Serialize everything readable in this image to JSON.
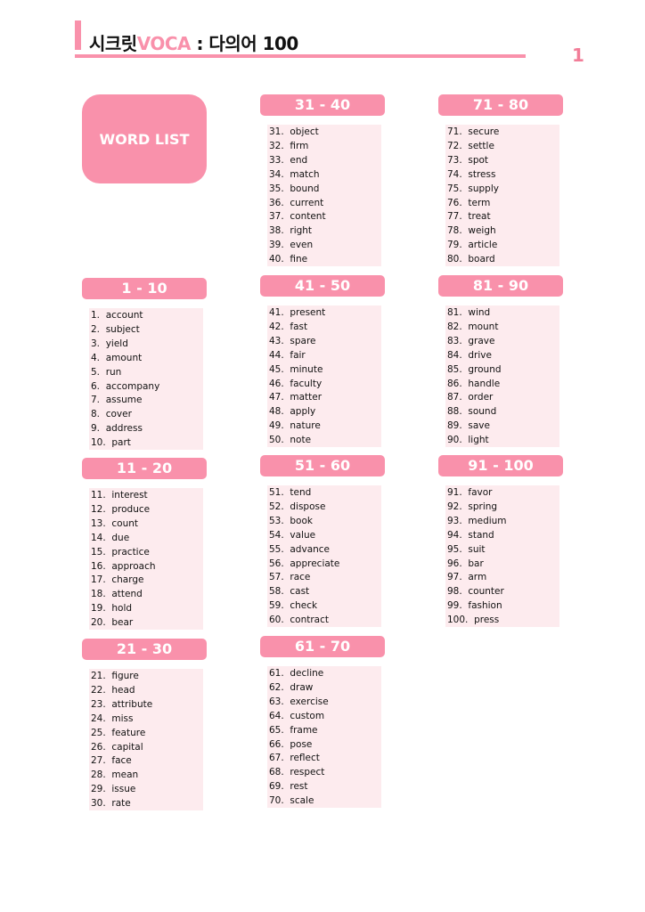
{
  "header": {
    "title_prefix": "시크릿",
    "title_brand": "VOCA",
    "title_suffix": " : 다의어 100",
    "page_number": "1"
  },
  "wordlist_label": "WORD LIST",
  "colors": {
    "accent": "#f991ab",
    "list_bg": "#fdebee"
  },
  "groups": [
    {
      "label": "1 - 10",
      "words": [
        "account",
        "subject",
        "yield",
        "amount",
        "run",
        "accompany",
        "assume",
        "cover",
        "address",
        "part"
      ]
    },
    {
      "label": "11 - 20",
      "words": [
        "interest",
        "produce",
        "count",
        "due",
        "practice",
        "approach",
        "charge",
        "attend",
        "hold",
        "bear"
      ]
    },
    {
      "label": "21 - 30",
      "words": [
        "figure",
        "head",
        "attribute",
        "miss",
        "feature",
        "capital",
        "face",
        "mean",
        "issue",
        "rate"
      ]
    },
    {
      "label": "31 - 40",
      "words": [
        "object",
        "firm",
        "end",
        "match",
        "bound",
        "current",
        "content",
        "right",
        "even",
        "fine"
      ]
    },
    {
      "label": "41 - 50",
      "words": [
        "present",
        "fast",
        "spare",
        "fair",
        "minute",
        "faculty",
        "matter",
        "apply",
        "nature",
        "note"
      ]
    },
    {
      "label": "51 - 60",
      "words": [
        "tend",
        "dispose",
        "book",
        "value",
        "advance",
        "appreciate",
        "race",
        "cast",
        "check",
        "contract"
      ]
    },
    {
      "label": "61 - 70",
      "words": [
        "decline",
        "draw",
        "exercise",
        "custom",
        "frame",
        "pose",
        "reflect",
        "respect",
        "rest",
        "scale"
      ]
    },
    {
      "label": "71 - 80",
      "words": [
        "secure",
        "settle",
        "spot",
        "stress",
        "supply",
        "term",
        "treat",
        "weigh",
        "article",
        "board"
      ]
    },
    {
      "label": "81 - 90",
      "words": [
        "wind",
        "mount",
        "grave",
        "drive",
        "ground",
        "handle",
        "order",
        "sound",
        "save",
        "light"
      ]
    },
    {
      "label": "91 - 100",
      "words": [
        "favor",
        "spring",
        "medium",
        "stand",
        "suit",
        "bar",
        "arm",
        "counter",
        "fashion",
        "press"
      ]
    }
  ]
}
